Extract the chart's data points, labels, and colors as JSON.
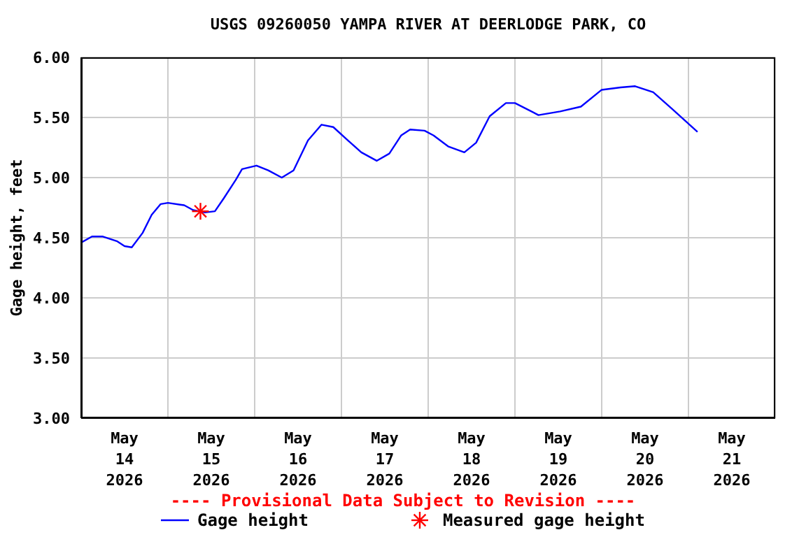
{
  "chart_data": {
    "type": "line",
    "title": "USGS 09260050 YAMPA RIVER AT DEERLODGE PARK, CO",
    "ylabel": "Gage height, feet",
    "annotations": [
      "---- Provisional Data Subject to Revision ----"
    ],
    "series": [
      {
        "name": "Gage height",
        "type": "line",
        "color": "#0000ff",
        "marker": "none",
        "x": [
          "2026-05-14T00:00",
          "2026-05-14T03:00",
          "2026-05-14T06:00",
          "2026-05-14T10:00",
          "2026-05-14T12:00",
          "2026-05-14T14:00",
          "2026-05-14T17:00",
          "2026-05-14T19:30",
          "2026-05-14T22:00",
          "2026-05-15T00:00",
          "2026-05-15T04:30",
          "2026-05-15T07:00",
          "2026-05-15T10:15",
          "2026-05-15T13:00",
          "2026-05-15T15:30",
          "2026-05-15T18:45",
          "2026-05-15T20:30",
          "2026-05-16T00:30",
          "2026-05-16T03:45",
          "2026-05-16T07:30",
          "2026-05-16T10:45",
          "2026-05-16T14:45",
          "2026-05-16T18:30",
          "2026-05-16T21:45",
          "2026-05-17T01:45",
          "2026-05-17T05:30",
          "2026-05-17T09:45",
          "2026-05-17T13:15",
          "2026-05-17T16:30",
          "2026-05-17T19:00",
          "2026-05-17T23:00",
          "2026-05-18T01:30",
          "2026-05-18T05:30",
          "2026-05-18T10:00",
          "2026-05-18T13:15",
          "2026-05-18T17:00",
          "2026-05-18T21:30",
          "2026-05-19T00:00",
          "2026-05-19T06:30",
          "2026-05-19T12:30",
          "2026-05-19T18:15",
          "2026-05-20T00:00",
          "2026-05-20T05:15",
          "2026-05-20T09:15",
          "2026-05-20T14:15",
          "2026-05-20T19:30",
          "2026-05-21T02:30"
        ],
        "values": [
          4.46,
          4.51,
          4.51,
          4.47,
          4.43,
          4.42,
          4.54,
          4.69,
          4.78,
          4.79,
          4.77,
          4.73,
          4.71,
          4.72,
          4.83,
          4.98,
          5.07,
          5.1,
          5.06,
          5.0,
          5.06,
          5.31,
          5.44,
          5.42,
          5.31,
          5.21,
          5.14,
          5.2,
          5.35,
          5.4,
          5.39,
          5.35,
          5.26,
          5.21,
          5.29,
          5.51,
          5.62,
          5.62,
          5.52,
          5.55,
          5.59,
          5.73,
          5.75,
          5.76,
          5.71,
          5.57,
          5.38
        ]
      },
      {
        "name": "Measured gage height",
        "type": "scatter",
        "color": "#ff0000",
        "marker": "cross",
        "x": [
          "2026-05-15T09:00"
        ],
        "values": [
          4.72
        ]
      }
    ],
    "xlim": [
      "2026-05-14T00:00",
      "2026-05-22T00:00"
    ],
    "xticks": [
      {
        "value": "2026-05-14T00:00",
        "label": null
      },
      {
        "value": "2026-05-14T12:00",
        "label": "May\n14\n2026"
      },
      {
        "value": "2026-05-15T00:00",
        "label": null
      },
      {
        "value": "2026-05-15T12:00",
        "label": "May\n15\n2026"
      },
      {
        "value": "2026-05-16T00:00",
        "label": null
      },
      {
        "value": "2026-05-16T12:00",
        "label": "May\n16\n2026"
      },
      {
        "value": "2026-05-17T00:00",
        "label": null
      },
      {
        "value": "2026-05-17T12:00",
        "label": "May\n17\n2026"
      },
      {
        "value": "2026-05-18T00:00",
        "label": null
      },
      {
        "value": "2026-05-18T12:00",
        "label": "May\n18\n2026"
      },
      {
        "value": "2026-05-19T00:00",
        "label": null
      },
      {
        "value": "2026-05-19T12:00",
        "label": "May\n19\n2026"
      },
      {
        "value": "2026-05-20T00:00",
        "label": null
      },
      {
        "value": "2026-05-20T12:00",
        "label": "May\n20\n2026"
      },
      {
        "value": "2026-05-21T00:00",
        "label": null
      },
      {
        "value": "2026-05-21T12:00",
        "label": "May\n21\n2026"
      },
      {
        "value": "2026-05-22T00:00",
        "label": null
      }
    ],
    "ylim": [
      3,
      6
    ],
    "yticks": [
      {
        "value": 3,
        "label": "3.00"
      },
      {
        "value": 3.5,
        "label": "3.50"
      },
      {
        "value": 4,
        "label": "4.00"
      },
      {
        "value": 4.5,
        "label": "4.50"
      },
      {
        "value": 5,
        "label": "5.00"
      },
      {
        "value": 5.5,
        "label": "5.50"
      },
      {
        "value": 6,
        "label": "6.00"
      }
    ],
    "grid": true,
    "legend": "bottom",
    "line_style": "solid"
  }
}
